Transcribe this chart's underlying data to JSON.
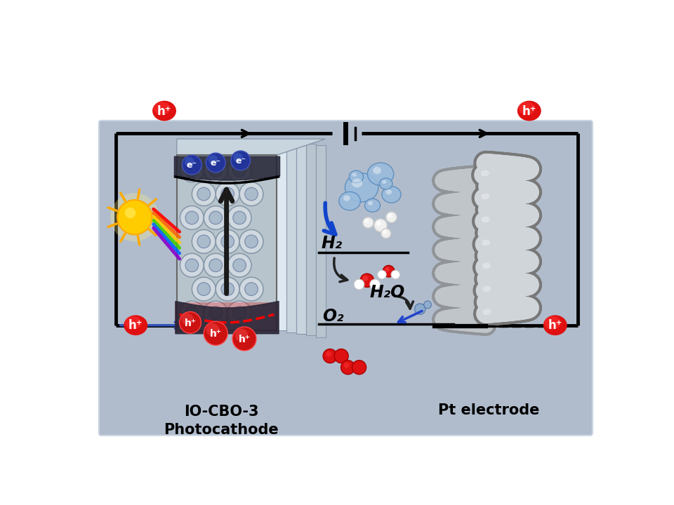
{
  "bg_color": "#b0bccc",
  "white": "#ffffff",
  "black": "#000000",
  "red_badge": "#cc1111",
  "blue_badge": "#223399",
  "panel_bg": "#b8c4d0",
  "coil_light": "#d8dce0",
  "coil_dark": "#909498",
  "coil_outline": "#787c80",
  "title": "IO-CBO-3\nPhotocathode",
  "pt_label": "Pt electrode",
  "h2_label": "H₂",
  "h2o_label": "H₂O",
  "o2_label": "O₂"
}
